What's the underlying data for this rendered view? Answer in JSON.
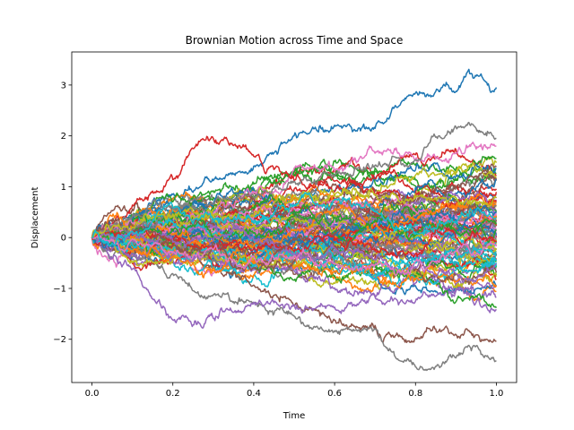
{
  "chart_data": {
    "type": "line",
    "title": "Brownian Motion across Time and Space",
    "xlabel": "Time",
    "ylabel": "Displacement",
    "xlim": [
      -0.05,
      1.05
    ],
    "ylim": [
      -2.85,
      3.65
    ],
    "xticks": [
      0.0,
      0.2,
      0.4,
      0.6,
      0.8,
      1.0
    ],
    "xtick_labels": [
      "0.0",
      "0.2",
      "0.4",
      "0.6",
      "0.8",
      "1.0"
    ],
    "yticks": [
      -2,
      -1,
      0,
      1,
      2,
      3
    ],
    "ytick_labels": [
      "−2",
      "−1",
      "0",
      "1",
      "2",
      "3"
    ],
    "grid": false,
    "legend": "none",
    "num_series": 100,
    "num_steps": 500,
    "palette": [
      "#1f77b4",
      "#ff7f0e",
      "#2ca02c",
      "#d62728",
      "#9467bd",
      "#8c564b",
      "#e377c2",
      "#7f7f7f",
      "#bcbd22",
      "#17becf"
    ],
    "highlighted_series": [
      {
        "x": [
          0.0,
          0.2,
          0.4,
          0.55,
          0.7,
          0.8,
          0.9,
          0.93,
          1.0
        ],
        "y": [
          0.0,
          0.8,
          1.4,
          2.2,
          2.2,
          2.9,
          2.9,
          3.3,
          2.9
        ]
      },
      {
        "x": [
          0.0,
          0.2,
          0.4,
          0.6,
          0.8,
          0.86,
          0.95,
          1.0
        ],
        "y": [
          0.0,
          -0.8,
          -1.4,
          -1.8,
          -2.3,
          -2.55,
          -2.1,
          -2.35
        ]
      },
      {
        "x": [
          0.0,
          0.1,
          0.2,
          0.3,
          0.4,
          0.6,
          0.8,
          1.0
        ],
        "y": [
          0.0,
          -0.6,
          -1.7,
          -1.5,
          -1.3,
          -1.4,
          -1.2,
          -1.0
        ]
      },
      {
        "x": [
          0.0,
          0.15,
          0.3,
          0.35,
          0.45,
          0.6,
          0.8,
          1.0
        ],
        "y": [
          0.0,
          0.9,
          1.9,
          1.8,
          1.3,
          1.1,
          0.8,
          0.6
        ]
      },
      {
        "x": [
          0.0,
          0.2,
          0.4,
          0.6,
          0.8,
          0.9,
          1.0
        ],
        "y": [
          0.0,
          -0.4,
          -1.0,
          -1.7,
          -2.0,
          -1.8,
          -2.0
        ]
      },
      {
        "x": [
          0.0,
          0.2,
          0.4,
          0.6,
          0.8,
          0.93,
          1.0
        ],
        "y": [
          0.0,
          0.5,
          0.9,
          1.2,
          1.6,
          2.3,
          2.05
        ]
      }
    ]
  }
}
